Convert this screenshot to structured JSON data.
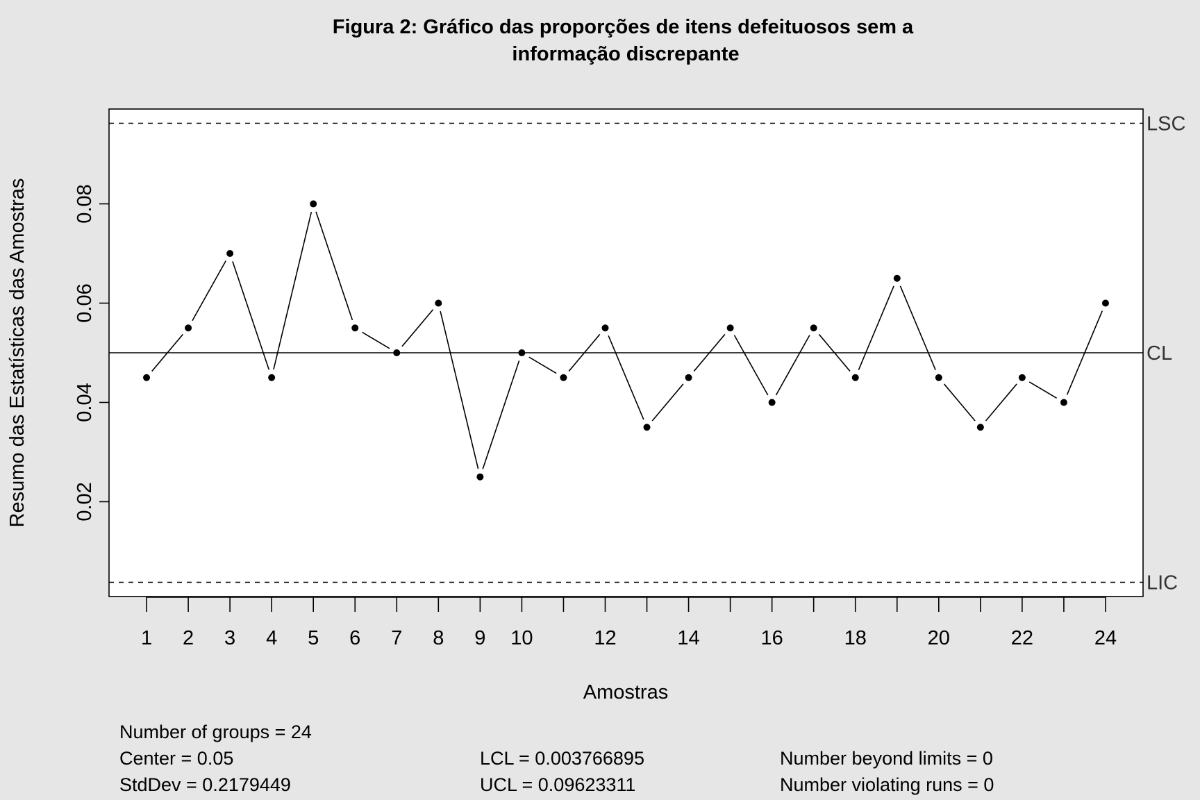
{
  "chart_data": {
    "type": "line",
    "title_line1": "Figura 2: Gráfico das proporções de itens defeituosos sem a",
    "title_line2": "informação discrepante",
    "xlabel": "Amostras",
    "ylabel": "Resumo das Estatísticas das Amostras",
    "x": [
      1,
      2,
      3,
      4,
      5,
      6,
      7,
      8,
      9,
      10,
      11,
      12,
      13,
      14,
      15,
      16,
      17,
      18,
      19,
      20,
      21,
      22,
      23,
      24
    ],
    "values": [
      0.045,
      0.055,
      0.07,
      0.045,
      0.08,
      0.055,
      0.05,
      0.06,
      0.025,
      0.05,
      0.045,
      0.055,
      0.035,
      0.045,
      0.055,
      0.04,
      0.055,
      0.045,
      0.065,
      0.045,
      0.035,
      0.045,
      0.04,
      0.06
    ],
    "x_tick_labels": [
      "1",
      "2",
      "3",
      "4",
      "5",
      "6",
      "7",
      "8",
      "9",
      "10",
      "",
      "12",
      "",
      "14",
      "",
      "16",
      "",
      "18",
      "",
      "20",
      "",
      "22",
      "",
      "24"
    ],
    "y_ticks": [
      0.02,
      0.04,
      0.06,
      0.08
    ],
    "y_tick_labels": [
      "0.02",
      "0.04",
      "0.06",
      "0.08"
    ],
    "xlim": [
      0.1,
      24.9
    ],
    "ylim": [
      0.0009,
      0.0991
    ],
    "center": 0.05,
    "lcl": 0.003766895,
    "ucl": 0.09623311,
    "limit_labels": {
      "ucl": "LSC",
      "center": "CL",
      "lcl": "LIC"
    }
  },
  "stats": {
    "groups": "Number of groups = 24",
    "center": "Center = 0.05",
    "stddev": "StdDev = 0.2179449",
    "lcl": "LCL = 0.003766895",
    "ucl": "UCL = 0.09623311",
    "beyond": "Number beyond limits = 0",
    "violating": "Number violating runs = 0"
  }
}
